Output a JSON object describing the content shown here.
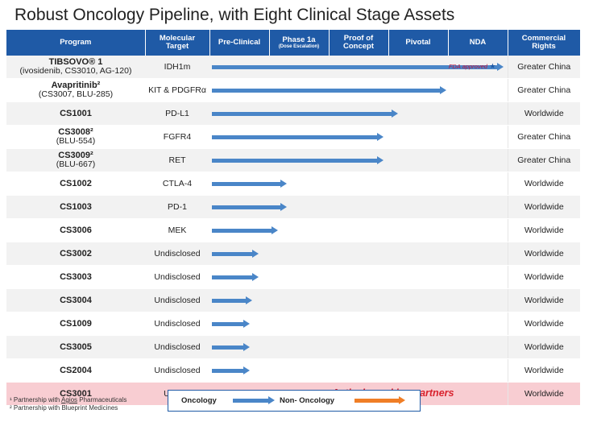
{
  "title": "Robust Oncology Pipeline, with Eight Clinical Stage Assets",
  "colors": {
    "header": "#1f5aa6",
    "oncology": "#4a86c8",
    "non_oncology": "#f07e26",
    "partner_row": "#f8cdd2",
    "fda_text": "#c0143c"
  },
  "headers": {
    "program": "Program",
    "target": "Molecular Target",
    "preclinical": "Pre-Clinical",
    "phase1a": "Phase 1a",
    "phase1a_sub": "(Dose Escalation)",
    "poc": "Proof of Concept",
    "pivotal": "Pivotal",
    "nda": "NDA",
    "rights": "Commercial Rights"
  },
  "rows": [
    {
      "name": "TIBSOVO® 1",
      "sub": "(ivosidenib, CS3010, AG-120)",
      "target": "IDH1m",
      "progress": 1.0,
      "type": "oncology",
      "note": "FDA approved",
      "rights": "Greater China"
    },
    {
      "name": "Avapritinib²",
      "sub": "(CS3007, BLU-285)",
      "target": "KIT & PDGFRα",
      "progress": 0.8,
      "type": "oncology",
      "rights": "Greater China"
    },
    {
      "name": "CS1001",
      "sub": "",
      "target": "PD-L1",
      "progress": 0.63,
      "type": "oncology",
      "rights": "Worldwide"
    },
    {
      "name": "CS3008²",
      "sub": "(BLU-554)",
      "target": "FGFR4",
      "progress": 0.58,
      "type": "oncology",
      "rights": "Greater China"
    },
    {
      "name": "CS3009²",
      "sub": "(BLU-667)",
      "target": "RET",
      "progress": 0.58,
      "type": "oncology",
      "rights": "Greater China"
    },
    {
      "name": "CS1002",
      "sub": "",
      "target": "CTLA-4",
      "progress": 0.24,
      "type": "oncology",
      "rights": "Worldwide"
    },
    {
      "name": "CS1003",
      "sub": "",
      "target": "PD-1",
      "progress": 0.24,
      "type": "oncology",
      "rights": "Worldwide"
    },
    {
      "name": "CS3006",
      "sub": "",
      "target": "MEK",
      "progress": 0.21,
      "type": "oncology",
      "rights": "Worldwide"
    },
    {
      "name": "CS3002",
      "sub": "",
      "target": "Undisclosed",
      "progress": 0.14,
      "type": "oncology",
      "rights": "Worldwide"
    },
    {
      "name": "CS3003",
      "sub": "",
      "target": "Undisclosed",
      "progress": 0.14,
      "type": "oncology",
      "rights": "Worldwide"
    },
    {
      "name": "CS3004",
      "sub": "",
      "target": "Undisclosed",
      "progress": 0.12,
      "type": "oncology",
      "rights": "Worldwide"
    },
    {
      "name": "CS1009",
      "sub": "",
      "target": "Undisclosed",
      "progress": 0.11,
      "type": "oncology",
      "rights": "Worldwide"
    },
    {
      "name": "CS3005",
      "sub": "",
      "target": "Undisclosed",
      "progress": 0.11,
      "type": "oncology",
      "rights": "Worldwide"
    },
    {
      "name": "CS2004",
      "sub": "",
      "target": "Undisclosed",
      "progress": 0.11,
      "type": "oncology",
      "rights": "Worldwide"
    },
    {
      "name": "CS3001",
      "sub": "",
      "target": "URAT1",
      "progress": 0.16,
      "type": "non-oncology",
      "note": "Actively seeking partners",
      "rights": "Worldwide"
    }
  ],
  "legend": {
    "oncology": "Oncology",
    "non_oncology": "Non- Oncology"
  },
  "footnotes": {
    "fn1_pre": "¹ Partnership with ",
    "fn1_link": "Agios",
    "fn1_post": " Pharmaceuticals",
    "fn2": "² Partnership with Blueprint Medicines"
  }
}
